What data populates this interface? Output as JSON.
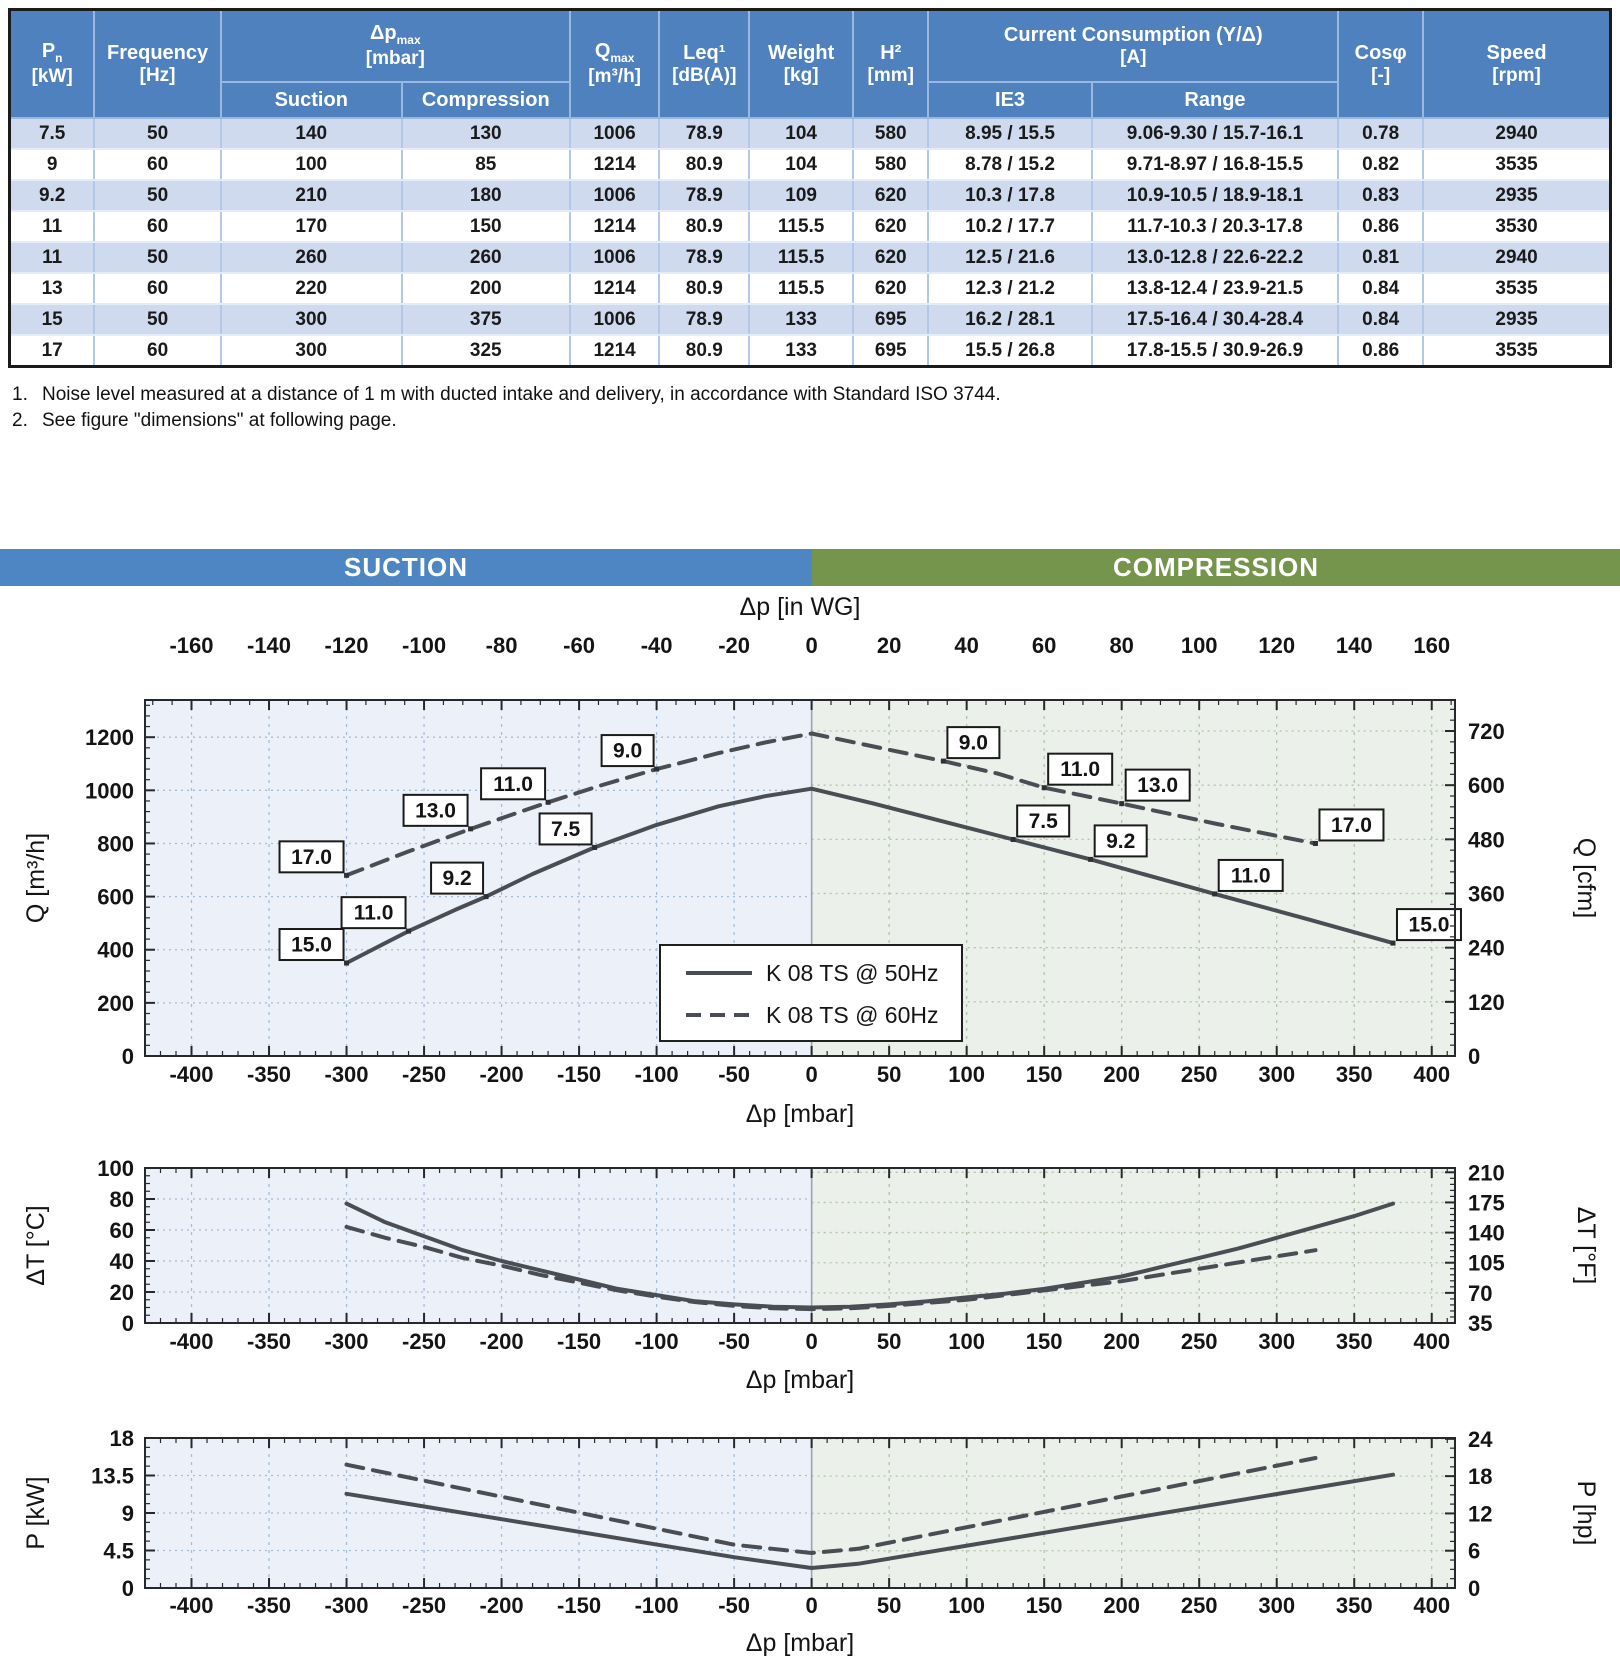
{
  "table": {
    "h": {
      "pn": {
        "base": "P",
        "sub": "n",
        "unit": "[kW]"
      },
      "freq": {
        "line1": "Frequency",
        "unit": "[Hz]"
      },
      "dp": {
        "base": "Δp",
        "sub": "max",
        "unit": "[mbar]",
        "sub1": "Suction",
        "sub2": "Compression"
      },
      "qmax": {
        "base": "Q",
        "sub": "max",
        "unit": "[m³/h]"
      },
      "leq": {
        "line1": "Leq¹",
        "unit": "[dB(A)]"
      },
      "weight": {
        "line1": "Weight",
        "unit": "[kg]"
      },
      "h2": {
        "line1": "H²",
        "unit": "[mm]"
      },
      "current": {
        "line1": "Current Consumption (Y/Δ)",
        "unit": "[A]",
        "sub1": "IE3",
        "sub2": "Range"
      },
      "cos": {
        "line1": "Cosφ",
        "unit": "[-]"
      },
      "speed": {
        "line1": "Speed",
        "unit": "[rpm]"
      }
    },
    "rows": [
      [
        "7.5",
        "50",
        "140",
        "130",
        "1006",
        "78.9",
        "104",
        "580",
        "8.95 / 15.5",
        "9.06-9.30 / 15.7-16.1",
        "0.78",
        "2940"
      ],
      [
        "9",
        "60",
        "100",
        "85",
        "1214",
        "80.9",
        "104",
        "580",
        "8.78 / 15.2",
        "9.71-8.97 / 16.8-15.5",
        "0.82",
        "3535"
      ],
      [
        "9.2",
        "50",
        "210",
        "180",
        "1006",
        "78.9",
        "109",
        "620",
        "10.3 / 17.8",
        "10.9-10.5 / 18.9-18.1",
        "0.83",
        "2935"
      ],
      [
        "11",
        "60",
        "170",
        "150",
        "1214",
        "80.9",
        "115.5",
        "620",
        "10.2 / 17.7",
        "11.7-10.3 / 20.3-17.8",
        "0.86",
        "3530"
      ],
      [
        "11",
        "50",
        "260",
        "260",
        "1006",
        "78.9",
        "115.5",
        "620",
        "12.5 / 21.6",
        "13.0-12.8 / 22.6-22.2",
        "0.81",
        "2940"
      ],
      [
        "13",
        "60",
        "220",
        "200",
        "1214",
        "80.9",
        "115.5",
        "620",
        "12.3 / 21.2",
        "13.8-12.4 / 23.9-21.5",
        "0.84",
        "3535"
      ],
      [
        "15",
        "50",
        "300",
        "375",
        "1006",
        "78.9",
        "133",
        "695",
        "16.2 / 28.1",
        "17.5-16.4 / 30.4-28.4",
        "0.84",
        "2935"
      ],
      [
        "17",
        "60",
        "300",
        "325",
        "1214",
        "80.9",
        "133",
        "695",
        "15.5 / 26.8",
        "17.8-15.5 / 30.9-26.9",
        "0.86",
        "3535"
      ]
    ]
  },
  "footnotes": [
    {
      "num": "1.",
      "text": "Noise level measured at a distance of 1 m with ducted intake and delivery, in accordance with Standard ISO 3744."
    },
    {
      "num": "2.",
      "text": "See figure \"dimensions\" at following page."
    }
  ],
  "section_bar": {
    "suction": "SUCTION",
    "compression": "COMPRESSION",
    "blue": "#4e86c4",
    "green": "#75954d"
  },
  "chart_data": [
    {
      "type": "line",
      "xlabel": "Δp [mbar]",
      "xlim": [
        -430,
        415
      ],
      "xticks": [
        -400,
        -350,
        -300,
        -250,
        -200,
        -150,
        -100,
        -50,
        0,
        50,
        100,
        150,
        200,
        250,
        300,
        350,
        400
      ],
      "x_minor": 10,
      "top_axis": {
        "title": "Δp [in WG]",
        "ticks": [
          -160,
          -140,
          -120,
          -100,
          -80,
          -60,
          -40,
          -20,
          0,
          20,
          40,
          60,
          80,
          100,
          120,
          140,
          160
        ],
        "minor": 5,
        "mbar_per_unit": 2.5
      },
      "ylabel": "Q [m³/h]",
      "ylim": [
        0,
        1340
      ],
      "yticks": [
        0,
        200,
        400,
        600,
        800,
        1000,
        1200
      ],
      "y_minor": 40,
      "y2label": "Q [cfm]",
      "y2": {
        "ticks": [
          0,
          120,
          240,
          360,
          480,
          600,
          720
        ],
        "minor": 24,
        "factor": 1.699,
        "offset": 0
      },
      "bg_left": "#ecf1f9",
      "bg_right": "#ebf0ea",
      "grid_left": "#a6bdd8",
      "grid_right": "#b2c3ad",
      "line_color": "#4a4e54",
      "series": [
        {
          "name": "K 08 TS @ 50Hz",
          "style": "solid",
          "points": [
            [
              -300,
              350
            ],
            [
              -260,
              470
            ],
            [
              -230,
              550
            ],
            [
              -210,
              600
            ],
            [
              -180,
              685
            ],
            [
              -140,
              785
            ],
            [
              -100,
              870
            ],
            [
              -60,
              940
            ],
            [
              -30,
              978
            ],
            [
              0,
              1006
            ],
            [
              40,
              950
            ],
            [
              80,
              890
            ],
            [
              130,
              815
            ],
            [
              180,
              740
            ],
            [
              220,
              675
            ],
            [
              260,
              610
            ],
            [
              320,
              515
            ],
            [
              375,
              425
            ]
          ]
        },
        {
          "name": "K 08 TS @ 60Hz",
          "style": "dashed",
          "points": [
            [
              -300,
              680
            ],
            [
              -260,
              770
            ],
            [
              -220,
              855
            ],
            [
              -190,
              915
            ],
            [
              -170,
              955
            ],
            [
              -135,
              1020
            ],
            [
              -100,
              1080
            ],
            [
              -60,
              1140
            ],
            [
              -30,
              1180
            ],
            [
              0,
              1214
            ],
            [
              40,
              1165
            ],
            [
              85,
              1110
            ],
            [
              120,
              1063
            ],
            [
              150,
              1010
            ],
            [
              175,
              980
            ],
            [
              200,
              950
            ],
            [
              260,
              875
            ],
            [
              325,
              800
            ]
          ]
        }
      ],
      "point_labels": [
        {
          "x": -300,
          "y": 350,
          "text": "15.0",
          "side": "left"
        },
        {
          "x": -260,
          "y": 470,
          "text": "11.0",
          "side": "left"
        },
        {
          "x": -210,
          "y": 600,
          "text": "9.2",
          "side": "left"
        },
        {
          "x": -140,
          "y": 785,
          "text": "7.5",
          "side": "left"
        },
        {
          "x": 130,
          "y": 815,
          "text": "7.5",
          "side": "right"
        },
        {
          "x": 180,
          "y": 740,
          "text": "9.2",
          "side": "right"
        },
        {
          "x": 260,
          "y": 610,
          "text": "11.0",
          "side": "right"
        },
        {
          "x": 375,
          "y": 425,
          "text": "15.0",
          "side": "right"
        },
        {
          "x": -300,
          "y": 680,
          "text": "17.0",
          "side": "left"
        },
        {
          "x": -220,
          "y": 855,
          "text": "13.0",
          "side": "left"
        },
        {
          "x": -170,
          "y": 955,
          "text": "11.0",
          "side": "left"
        },
        {
          "x": -100,
          "y": 1080,
          "text": "9.0",
          "side": "left"
        },
        {
          "x": 85,
          "y": 1110,
          "text": "9.0",
          "side": "right"
        },
        {
          "x": 150,
          "y": 1010,
          "text": "11.0",
          "side": "right"
        },
        {
          "x": 200,
          "y": 950,
          "text": "13.0",
          "side": "right"
        },
        {
          "x": 325,
          "y": 800,
          "text": "17.0",
          "side": "right"
        }
      ],
      "legend": {
        "position": "bottom-center",
        "items": [
          "K 08 TS @ 50Hz",
          "K 08 TS @ 60Hz"
        ]
      }
    },
    {
      "type": "line",
      "xlabel": "Δp [mbar]",
      "xlim": [
        -430,
        415
      ],
      "xticks": [
        -400,
        -350,
        -300,
        -250,
        -200,
        -150,
        -100,
        -50,
        0,
        50,
        100,
        150,
        200,
        250,
        300,
        350,
        400
      ],
      "x_minor": 10,
      "ylabel": "ΔT [°C]",
      "ylim": [
        0,
        100
      ],
      "yticks": [
        0,
        20,
        40,
        60,
        80,
        100
      ],
      "y_minor": 5,
      "y2label": "ΔT [°F]",
      "y2": {
        "ticks": [
          35,
          70,
          105,
          140,
          175,
          210
        ],
        "minor": 7,
        "factor": 0.55556,
        "offset": -19.444
      },
      "bg_left": "#ecf1f9",
      "bg_right": "#ebf0ea",
      "grid_left": "#a6bdd8",
      "grid_right": "#b2c3ad",
      "line_color": "#4a4e54",
      "series": [
        {
          "name": "K 08 TS @ 50Hz",
          "style": "solid",
          "points": [
            [
              -300,
              77
            ],
            [
              -275,
              65
            ],
            [
              -250,
              56
            ],
            [
              -225,
              47
            ],
            [
              -200,
              40
            ],
            [
              -175,
              34
            ],
            [
              -150,
              28
            ],
            [
              -125,
              22
            ],
            [
              -100,
              18
            ],
            [
              -75,
              14
            ],
            [
              -50,
              12
            ],
            [
              -25,
              10.5
            ],
            [
              0,
              10
            ],
            [
              25,
              10.5
            ],
            [
              50,
              12
            ],
            [
              75,
              14
            ],
            [
              100,
              16.5
            ],
            [
              125,
              19
            ],
            [
              150,
              22
            ],
            [
              175,
              26
            ],
            [
              200,
              30
            ],
            [
              225,
              36
            ],
            [
              250,
              42
            ],
            [
              275,
              48
            ],
            [
              300,
              55
            ],
            [
              325,
              62
            ],
            [
              350,
              69
            ],
            [
              375,
              77
            ]
          ]
        },
        {
          "name": "K 08 TS @ 60Hz",
          "style": "dashed",
          "points": [
            [
              -300,
              62
            ],
            [
              -275,
              55
            ],
            [
              -250,
              49
            ],
            [
              -225,
              42
            ],
            [
              -200,
              37
            ],
            [
              -175,
              31
            ],
            [
              -150,
              26
            ],
            [
              -125,
              21
            ],
            [
              -100,
              17
            ],
            [
              -75,
              13.5
            ],
            [
              -50,
              11
            ],
            [
              -25,
              9.5
            ],
            [
              0,
              9
            ],
            [
              25,
              9.5
            ],
            [
              50,
              11
            ],
            [
              75,
              13
            ],
            [
              100,
              15
            ],
            [
              125,
              18
            ],
            [
              150,
              21
            ],
            [
              175,
              24
            ],
            [
              200,
              27
            ],
            [
              225,
              31
            ],
            [
              250,
              35
            ],
            [
              275,
              39
            ],
            [
              300,
              43
            ],
            [
              325,
              47
            ]
          ]
        }
      ]
    },
    {
      "type": "line",
      "xlabel": "Δp [mbar]",
      "xlim": [
        -430,
        415
      ],
      "xticks": [
        -400,
        -350,
        -300,
        -250,
        -200,
        -150,
        -100,
        -50,
        0,
        50,
        100,
        150,
        200,
        250,
        300,
        350,
        400
      ],
      "x_minor": 10,
      "ylabel": "P [kW]",
      "ylim": [
        0,
        18
      ],
      "yticks": [
        0,
        4.5,
        9,
        13.5,
        18
      ],
      "y_minor": 1.125,
      "y2label": "P [hp]",
      "y2": {
        "ticks": [
          0,
          6,
          12,
          18,
          24
        ],
        "minor": 1.5,
        "factor": 0.7457,
        "offset": 0
      },
      "bg_left": "#ecf1f9",
      "bg_right": "#ebf0ea",
      "grid_left": "#a6bdd8",
      "grid_right": "#b2c3ad",
      "line_color": "#4a4e54",
      "series": [
        {
          "name": "K 08 TS @ 50Hz",
          "style": "solid",
          "points": [
            [
              -300,
              11.3
            ],
            [
              -50,
              3.7
            ],
            [
              0,
              2.4
            ],
            [
              30,
              2.9
            ],
            [
              375,
              13.6
            ]
          ]
        },
        {
          "name": "K 08 TS @ 60Hz",
          "style": "dashed",
          "points": [
            [
              -300,
              14.8
            ],
            [
              -50,
              5.2
            ],
            [
              0,
              4.2
            ],
            [
              30,
              4.7
            ],
            [
              325,
              15.6
            ]
          ]
        }
      ]
    }
  ]
}
